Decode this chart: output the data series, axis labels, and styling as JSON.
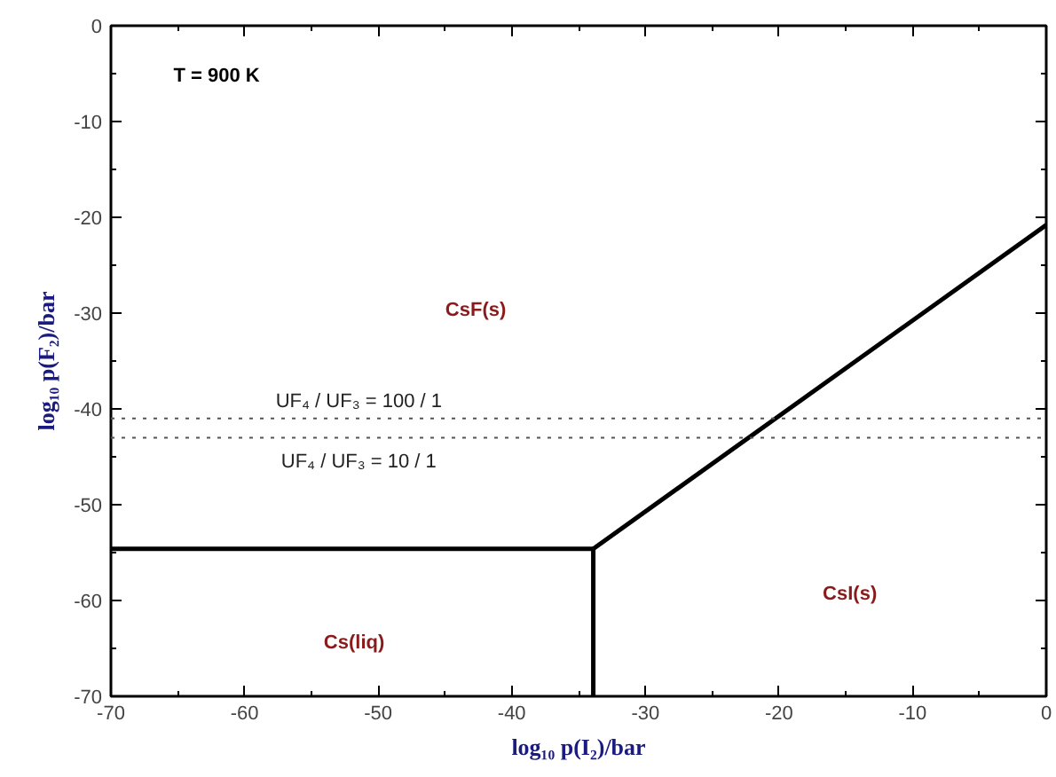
{
  "chart_data": {
    "type": "line",
    "xlabel": "log₁₀ p(I₂)/bar",
    "ylabel": "log₁₀ p(F₂)/bar",
    "series": [
      {
        "color": "#000000",
        "x": [
          -70,
          -33.9
        ],
        "values": [
          -54.6,
          -54.6
        ]
      },
      {
        "color": "#000000",
        "x": [
          -33.9,
          -33.9
        ],
        "values": [
          -54.6,
          -70
        ]
      },
      {
        "color": "#000000",
        "x": [
          -33.9,
          0
        ],
        "values": [
          -54.6,
          -20.8
        ]
      }
    ],
    "xlim": [
      -70,
      0
    ],
    "ylim": [
      -70,
      0
    ],
    "xticks": [
      -70,
      -60,
      -50,
      -40,
      -30,
      -20,
      -10,
      0
    ],
    "yticks": [
      -70,
      -60,
      -50,
      -40,
      -30,
      -20,
      -10,
      0
    ],
    "ref_lines": [
      {
        "axis": "y",
        "value": -41,
        "color": "#555555",
        "line_style": "dotted"
      },
      {
        "axis": "y",
        "value": -43,
        "color": "#555555",
        "line_style": "dotted"
      }
    ],
    "annotations": [
      "T = 900 K",
      "CsF(s)",
      "Cs(liq)",
      "CsI(s)",
      "UF₄ / UF₃ = 100 / 1",
      "UF₄ / UF₃ = 10 / 1"
    ],
    "grid": false,
    "marker": "none",
    "line_style": "solid"
  }
}
